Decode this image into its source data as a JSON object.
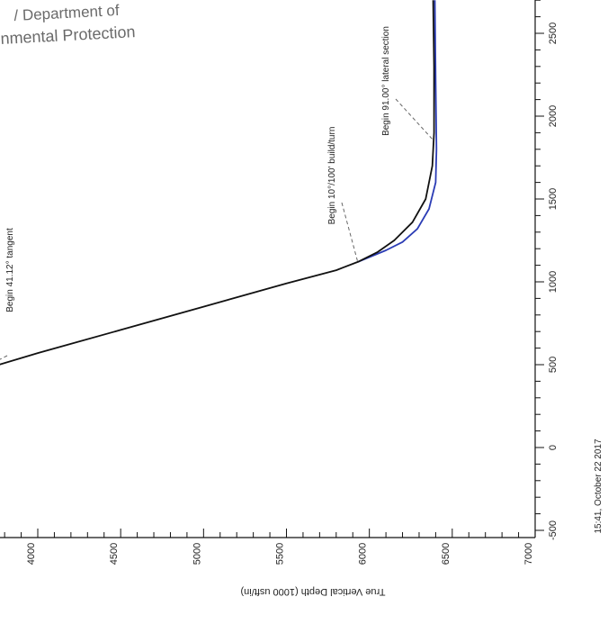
{
  "header": {
    "line1": "/ Department of",
    "line2": "nmental Protection"
  },
  "footer": {
    "timestamp": "15:41, October 22 2017"
  },
  "chart_data": {
    "type": "line",
    "title": "",
    "xlabel": "True Vertical Depth (1000 usft/in)",
    "ylabel": "",
    "x_axis": {
      "label": "True Vertical Depth (1000 usft/in)",
      "range": [
        3600,
        7000
      ],
      "ticks": [
        4000,
        4500,
        5000,
        5500,
        6000,
        6500,
        7000
      ],
      "tick_labels": [
        "4000",
        "4500",
        "5000",
        "5500",
        "6000",
        "6500",
        "7000"
      ]
    },
    "y_axis": {
      "label": "",
      "range": [
        -500,
        2700
      ],
      "ticks": [
        -500,
        0,
        500,
        1000,
        1500,
        2000,
        2500
      ],
      "tick_labels": [
        "-500",
        "0",
        "500",
        "1000",
        "1500",
        "2000",
        "2500"
      ]
    },
    "colors": {
      "plan": "#111111",
      "actual": "#2b3cb5",
      "annotation": "#666666"
    },
    "series": [
      {
        "values_xy": [
          [
            3600,
            450
          ],
          [
            4000,
            570
          ],
          [
            4500,
            710
          ],
          [
            5000,
            850
          ],
          [
            5500,
            990
          ],
          [
            5800,
            1070
          ],
          [
            5930,
            1120
          ],
          [
            6050,
            1180
          ],
          [
            6150,
            1250
          ],
          [
            6260,
            1360
          ],
          [
            6340,
            1500
          ],
          [
            6380,
            1700
          ],
          [
            6390,
            1900
          ],
          [
            6390,
            2300
          ],
          [
            6385,
            2700
          ]
        ]
      },
      {
        "values_xy": [
          [
            5930,
            1120
          ],
          [
            6100,
            1190
          ],
          [
            6200,
            1240
          ],
          [
            6290,
            1320
          ],
          [
            6360,
            1440
          ],
          [
            6400,
            1600
          ],
          [
            6405,
            1800
          ],
          [
            6400,
            2200
          ],
          [
            6395,
            2700
          ]
        ]
      }
    ],
    "annotations": [
      {
        "text": "Begin 41.12° tangent",
        "x": 3610,
        "y": 450
      },
      {
        "text": "Begin 10°/100' build/turn",
        "x": 5930,
        "y": 1120
      },
      {
        "text": "Begin 91.00° lateral section",
        "x": 6390,
        "y": 1850
      }
    ]
  }
}
